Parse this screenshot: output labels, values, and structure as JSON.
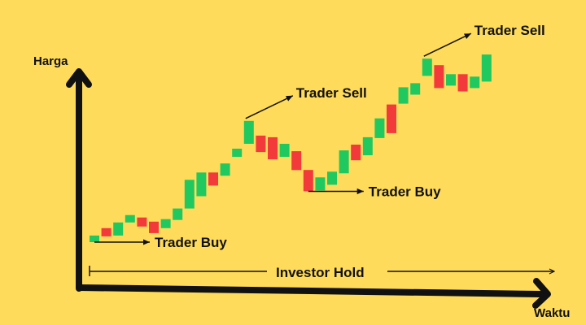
{
  "chart_data": {
    "type": "candlestick",
    "title": "",
    "xlabel": "Waktu",
    "ylabel": "Harga",
    "ylim": [
      0,
      100
    ],
    "grid": false,
    "colors": {
      "up": "#1FC95F",
      "down": "#F23A3A",
      "background": "#FFDB5B",
      "axis": "#111111"
    },
    "candles": [
      {
        "open": 6,
        "close": 14,
        "dir": "up"
      },
      {
        "open": 23,
        "close": 13,
        "dir": "down"
      },
      {
        "open": 14,
        "close": 30,
        "dir": "up"
      },
      {
        "open": 30,
        "close": 39,
        "dir": "up"
      },
      {
        "open": 36,
        "close": 25,
        "dir": "down"
      },
      {
        "open": 31,
        "close": 17,
        "dir": "down"
      },
      {
        "open": 23,
        "close": 34,
        "dir": "up"
      },
      {
        "open": 33,
        "close": 47,
        "dir": "up"
      },
      {
        "open": 47,
        "close": 82,
        "dir": "up"
      },
      {
        "open": 62,
        "close": 91,
        "dir": "up"
      },
      {
        "open": 91,
        "close": 75,
        "dir": "down"
      },
      {
        "open": 87,
        "close": 102,
        "dir": "up"
      },
      {
        "open": 110,
        "close": 120,
        "dir": "up"
      },
      {
        "open": 126,
        "close": 154,
        "dir": "up"
      },
      {
        "open": 136,
        "close": 116,
        "dir": "down"
      },
      {
        "open": 134,
        "close": 107,
        "dir": "down"
      },
      {
        "open": 110,
        "close": 126,
        "dir": "up"
      },
      {
        "open": 117,
        "close": 94,
        "dir": "down"
      },
      {
        "open": 94,
        "close": 68,
        "dir": "down"
      },
      {
        "open": 69,
        "close": 85,
        "dir": "up"
      },
      {
        "open": 76,
        "close": 92,
        "dir": "up"
      },
      {
        "open": 90,
        "close": 118,
        "dir": "up"
      },
      {
        "open": 125,
        "close": 106,
        "dir": "down"
      },
      {
        "open": 112,
        "close": 134,
        "dir": "up"
      },
      {
        "open": 133,
        "close": 157,
        "dir": "up"
      },
      {
        "open": 174,
        "close": 139,
        "dir": "down"
      },
      {
        "open": 175,
        "close": 195,
        "dir": "up"
      },
      {
        "open": 186,
        "close": 200,
        "dir": "up"
      },
      {
        "open": 209,
        "close": 230,
        "dir": "up"
      },
      {
        "open": 222,
        "close": 194,
        "dir": "down"
      },
      {
        "open": 197,
        "close": 211,
        "dir": "up"
      },
      {
        "open": 211,
        "close": 190,
        "dir": "down"
      },
      {
        "open": 194,
        "close": 208,
        "dir": "up"
      },
      {
        "open": 202,
        "close": 235,
        "dir": "up"
      }
    ],
    "annotations": [
      {
        "text": "Trader Buy",
        "candle": 0
      },
      {
        "text": "Trader Sell",
        "candle": 13
      },
      {
        "text": "Trader Buy",
        "candle": 18
      },
      {
        "text": "Trader Sell",
        "candle": 28
      }
    ],
    "span_label": "Investor Hold"
  }
}
